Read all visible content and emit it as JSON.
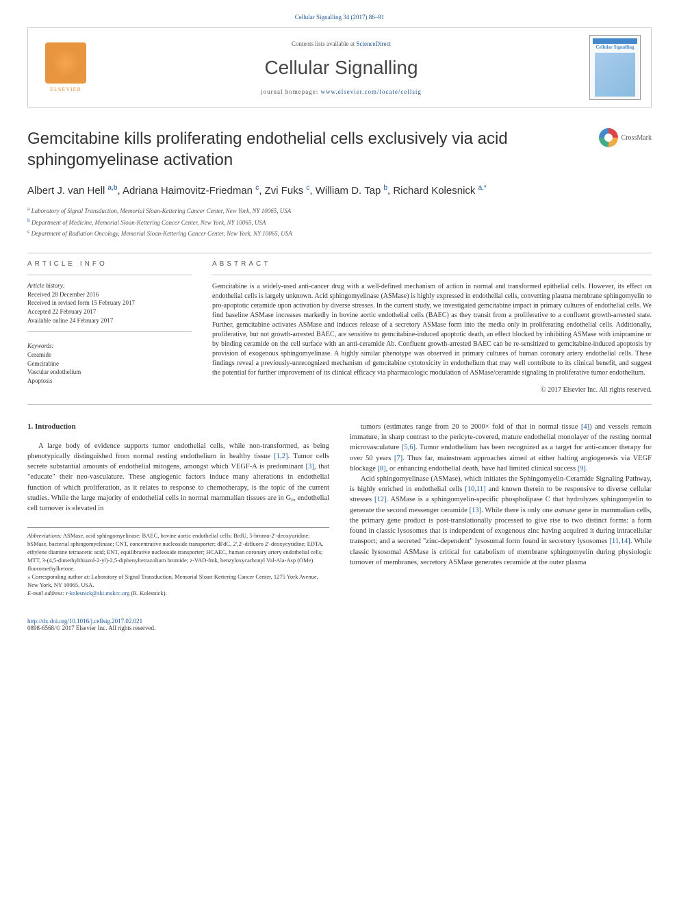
{
  "citation": "Cellular Signalling 34 (2017) 86–91",
  "header": {
    "contents_prefix": "Contents lists available at ",
    "contents_link": "ScienceDirect",
    "journal_name": "Cellular Signalling",
    "homepage_prefix": "journal homepage: ",
    "homepage_url": "www.elsevier.com/locate/cellsig",
    "elsevier_label": "ELSEVIER",
    "cover_title": "Cellular Signalling"
  },
  "crossmark_label": "CrossMark",
  "title": "Gemcitabine kills proliferating endothelial cells exclusively via acid sphingomyelinase activation",
  "authors_html": "Albert J. van Hell",
  "authors": [
    {
      "name": "Albert J. van Hell",
      "aff": "a,b"
    },
    {
      "name": "Adriana Haimovitz-Friedman",
      "aff": "c"
    },
    {
      "name": "Zvi Fuks",
      "aff": "c"
    },
    {
      "name": "William D. Tap",
      "aff": "b"
    },
    {
      "name": "Richard Kolesnick",
      "aff": "a,",
      "star": true
    }
  ],
  "affiliations": [
    {
      "sup": "a",
      "text": " Laboratory of Signal Transduction, Memorial Sloan-Kettering Cancer Center, New York, NY 10065, USA"
    },
    {
      "sup": "b",
      "text": " Department of Medicine, Memorial Sloan-Kettering Cancer Center, New York, NY 10065, USA"
    },
    {
      "sup": "c",
      "text": " Department of Radiation Oncology, Memorial Sloan-Kettering Cancer Center, New York, NY 10065, USA"
    }
  ],
  "info": {
    "heading": "ARTICLE INFO",
    "history_label": "Article history:",
    "history": "Received 28 December 2016\nReceived in revised form 15 February 2017\nAccepted 22 February 2017\nAvailable online 24 February 2017",
    "keywords_label": "Keywords:",
    "keywords": "Ceramide\nGemcitabine\nVascular endothelium\nApoptosis"
  },
  "abstract": {
    "heading": "ABSTRACT",
    "text": "Gemcitabine is a widely-used anti-cancer drug with a well-defined mechanism of action in normal and transformed epithelial cells. However, its effect on endothelial cells is largely unknown. Acid sphingomyelinase (ASMase) is highly expressed in endothelial cells, converting plasma membrane sphingomyelin to pro-apoptotic ceramide upon activation by diverse stresses. In the current study, we investigated gemcitabine impact in primary cultures of endothelial cells. We find baseline ASMase increases markedly in bovine aortic endothelial cells (BAEC) as they transit from a proliferative to a confluent growth-arrested state. Further, gemcitabine activates ASMase and induces release of a secretory ASMase form into the media only in proliferating endothelial cells. Additionally, proliferative, but not growth-arrested BAEC, are sensitive to gemcitabine-induced apoptotic death, an effect blocked by inhibiting ASMase with imipramine or by binding ceramide on the cell surface with an anti-ceramide Ab. Confluent growth-arrested BAEC can be re-sensitized to gemcitabine-induced apoptosis by provision of exogenous sphingomyelinase. A highly similar phenotype was observed in primary cultures of human coronary artery endothelial cells. These findings reveal a previously-unrecognized mechanism of gemcitabine cytotoxicity in endothelium that may well contribute to its clinical benefit, and suggest the potential for further improvement of its clinical efficacy via pharmacologic modulation of ASMase/ceramide signaling in proliferative tumor endothelium.",
    "copyright": "© 2017 Elsevier Inc. All rights reserved."
  },
  "intro": {
    "heading": "1. Introduction",
    "p1": "A large body of evidence supports tumor endothelial cells, while non-transformed, as being phenotypically distinguished from normal resting endothelium in healthy tissue [1,2]. Tumor cells secrete substantial amounts of endothelial mitogens, amongst which VEGF-A is predominant [3], that \"educate\" their neo-vasculature. These angiogenic factors induce many alterations in endothelial function of which proliferation, as it relates to response to chemotherapy, is the topic of the current studies. While the large majority of endothelial cells in normal mammalian tissues are in G₀, endothelial cell turnover is elevated in",
    "p2": "tumors (estimates range from 20 to 2000× fold of that in normal tissue [4]) and vessels remain immature, in sharp contrast to the pericyte-covered, mature endothelial monolayer of the resting normal microvasculature [5,6]. Tumor endothelium has been recognized as a target for anti-cancer therapy for over 50 years [7]. Thus far, mainstream approaches aimed at either halting angiogenesis via VEGF blockage [8], or enhancing endothelial death, have had limited clinical success [9].",
    "p3": "Acid sphingomyelinase (ASMase), which initiates the Sphingomyelin-Ceramide Signaling Pathway, is highly enriched in endothelial cells [10,11] and known therein to be responsive to diverse cellular stresses [12]. ASMase is a sphingomyelin-specific phospholipase C that hydrolyzes sphingomyelin to generate the second messenger ceramide [13]. While there is only one asmase gene in mammalian cells, the primary gene product is post-translationally processed to give rise to two distinct forms: a form found in classic lysosomes that is independent of exogenous zinc having acquired it during intracellular transport; and a secreted \"zinc-dependent\" lysosomal form found in secretory lysosomes [11,14]. While classic lysosomal ASMase is critical for catabolism of membrane sphingomyelin during physiologic turnover of membranes, secretory ASMase generates ceramide at the outer plasma"
  },
  "footnotes": {
    "abbrev_label": "Abbreviations:",
    "abbrev_text": " ASMase, acid sphingomyelinase; BAEC, bovine aortic endothelial cells; BrdU, 5-bromo-2′-deoxyuridine; bSMase, bacterial sphingomyelinase; CNT, concentrative nucleoside transporter; dFdC, 2′,2′-difluoro 2′-deoxycytidine; EDTA, ethylene diamine tetraacetic acid; ENT, equilibrative nucleoside transporter; HCAEC, human coronary artery endothelial cells; MTT, 3-(4,5-dimethylthiazol-2-yl)-2,5-diphenyltetrazolium bromide; z-VAD-fmk, benzyloxycarbonyl Val-Ala-Asp (OMe) fluoromethylketone.",
    "corr_label": "⁎ Corresponding author at: Laboratory of Signal Transduction, Memorial Sloan-Kettering Cancer Center, 1275 York Avenue, New York, NY 10065, USA.",
    "email_label": "E-mail address: ",
    "email": "r-kolesnick@ski.mskcc.org",
    "email_name": " (R. Kolesnick)."
  },
  "footer": {
    "doi": "http://dx.doi.org/10.1016/j.cellsig.2017.02.021",
    "issn": "0898-6568/© 2017 Elsevier Inc. All rights reserved."
  },
  "colors": {
    "link": "#1a5490",
    "elsevier": "#e8953f",
    "text": "#333333",
    "border": "#cccccc"
  }
}
